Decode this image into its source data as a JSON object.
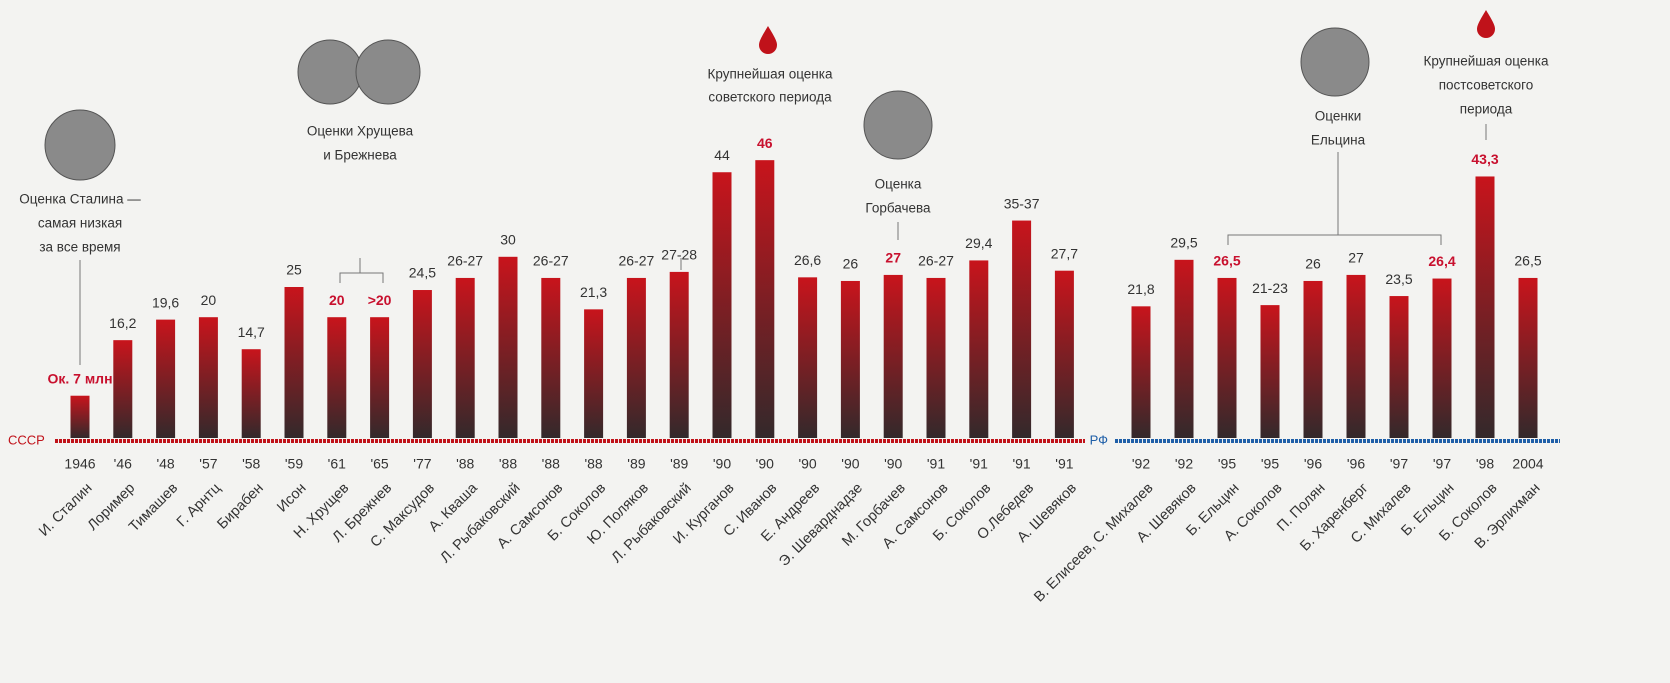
{
  "chart_data": [
    {
      "type": "bar",
      "baseline_label": "СССР",
      "baseline_color": "#c0121a",
      "categories": [
        "1946",
        "'46",
        "'48",
        "'57",
        "'58",
        "'59",
        "'61",
        "'65",
        "'77",
        "'88",
        "'88",
        "'88",
        "'88",
        "'89",
        "'89",
        "'90",
        "'90",
        "'90",
        "'90",
        "'90",
        "'91",
        "'91",
        "'91",
        "'91"
      ],
      "names": [
        "И. Сталин",
        "Лоример",
        "Тимашев",
        "Г. Арнтц",
        "Бирабен",
        "Исон",
        "Н. Хрущев",
        "Л. Брежнев",
        "С. Максудов",
        "А. Кваша",
        "Л. Рыбаковский",
        "А. Самсонов",
        "Б. Соколов",
        "Ю. Поляков",
        "Л. Рыбаковский",
        "И. Курганов",
        "С. Иванов",
        "Е. Андреев",
        "Э. Шеварднадзе",
        "М. Горбачев",
        "А. Самсонов",
        "Б. Соколов",
        "О.Лебедев",
        "А. Шевяков"
      ],
      "values": [
        7,
        16.2,
        19.6,
        20,
        14.7,
        25,
        20,
        20,
        24.5,
        26.5,
        30,
        26.5,
        21.3,
        26.5,
        27.5,
        44,
        46,
        26.6,
        26,
        27,
        26.5,
        29.4,
        36,
        27.7
      ],
      "value_labels": [
        "Ок. 7 млн",
        "16,2",
        "19,6",
        "20",
        "14,7",
        "25",
        "20",
        ">20",
        "24,5",
        "26-27",
        "30",
        "26-27",
        "21,3",
        "26-27",
        "27-28",
        "44",
        "46",
        "26,6",
        "26",
        "27",
        "26-27",
        "29,4",
        "35-37",
        "27,7"
      ],
      "value_label_colors": [
        "#c8102e",
        "#333333",
        "#333333",
        "#333333",
        "#333333",
        "#333333",
        "#c8102e",
        "#c8102e",
        "#333333",
        "#333333",
        "#333333",
        "#333333",
        "#333333",
        "#333333",
        "#333333",
        "#333333",
        "#c8102e",
        "#333333",
        "#333333",
        "#c8102e",
        "#333333",
        "#333333",
        "#333333",
        "#333333"
      ],
      "annotations": [
        [
          "Оценка Сталина —",
          "самая низкая",
          "за все время"
        ],
        [
          "Оценки Хрущева",
          "и Брежнева"
        ],
        [
          "Крупнейшая оценка",
          "советского периода"
        ],
        [
          "Оценка",
          "Горбачева"
        ]
      ]
    },
    {
      "type": "bar",
      "baseline_label": "РФ",
      "baseline_color": "#1f5fa8",
      "categories": [
        "'92",
        "'92",
        "'95",
        "'95",
        "'96",
        "'96",
        "'97",
        "'97",
        "'98",
        "2004"
      ],
      "names": [
        "В. Елисеев, С. Михалев",
        "А. Шевяков",
        "Б. Ельцин",
        "А. Соколов",
        "П. Полян",
        "Б. Харенберг",
        "С. Михалев",
        "Б. Ельцин",
        "Б. Соколов",
        "В. Эрлихман"
      ],
      "values": [
        21.8,
        29.5,
        26.5,
        22,
        26,
        27,
        23.5,
        26.4,
        43.3,
        26.5
      ],
      "value_labels": [
        "21,8",
        "29,5",
        "26,5",
        "21-23",
        "26",
        "27",
        "23,5",
        "26,4",
        "43,3",
        "26,5"
      ],
      "value_label_colors": [
        "#333333",
        "#333333",
        "#c8102e",
        "#333333",
        "#333333",
        "#333333",
        "#333333",
        "#c8102e",
        "#c8102e",
        "#333333"
      ],
      "annotations": [
        [
          "Оценки",
          "Ельцина"
        ],
        [
          "Крупнейшая оценка",
          "постсоветского",
          "периода"
        ]
      ]
    }
  ]
}
